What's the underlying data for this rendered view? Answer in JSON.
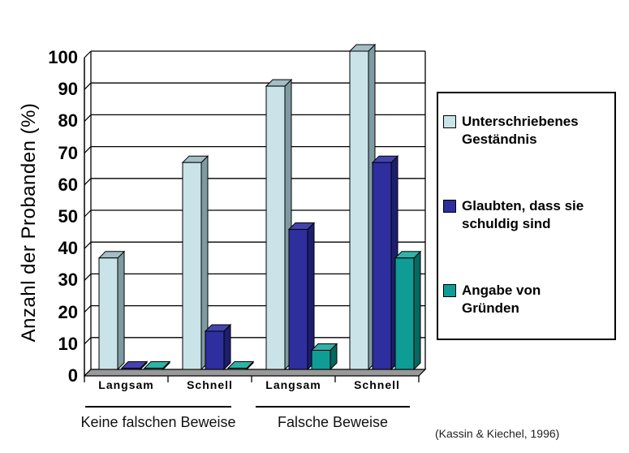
{
  "chart_data": {
    "type": "bar",
    "title": "",
    "ylabel": "Anzahl der Probanden (%)",
    "ylim": [
      0,
      100
    ],
    "ytick_step": 10,
    "grid": true,
    "legend_position": "right",
    "style": "3d-effect",
    "categories": [
      "Langsam",
      "Schnell",
      "Langsam",
      "Schnell"
    ],
    "group_labels": [
      "Keine falschen Beweise",
      "Falsche Beweise"
    ],
    "series": [
      {
        "name": "Unterschriebenes Geständnis",
        "color": "#C9E3E9",
        "color_top": "#A3BEC4",
        "color_side": "#7E9BA1",
        "values": [
          35,
          65,
          89,
          100
        ]
      },
      {
        "name": "Glaubten, dass sie schuldig sind",
        "color": "#2E2E9E",
        "color_top": "#4343B0",
        "color_side": "#1E1E6E",
        "values": [
          0,
          12,
          44,
          65
        ]
      },
      {
        "name": "Angabe von Gründen",
        "color": "#0E9C95",
        "color_top": "#2FB2A9",
        "color_side": "#076860",
        "values": [
          0,
          0,
          6,
          35
        ]
      }
    ],
    "floor_color": "#999999",
    "axis_color": "#000000",
    "citation": "(Kassin & Kiechel, 1996)"
  },
  "legend": {
    "items": [
      {
        "lines": [
          "Unterschriebenes",
          "Geständnis"
        ]
      },
      {
        "lines": [
          "Glaubten, dass sie",
          "schuldig sind"
        ]
      },
      {
        "lines": [
          "Angabe von",
          "Gründen"
        ]
      }
    ]
  }
}
